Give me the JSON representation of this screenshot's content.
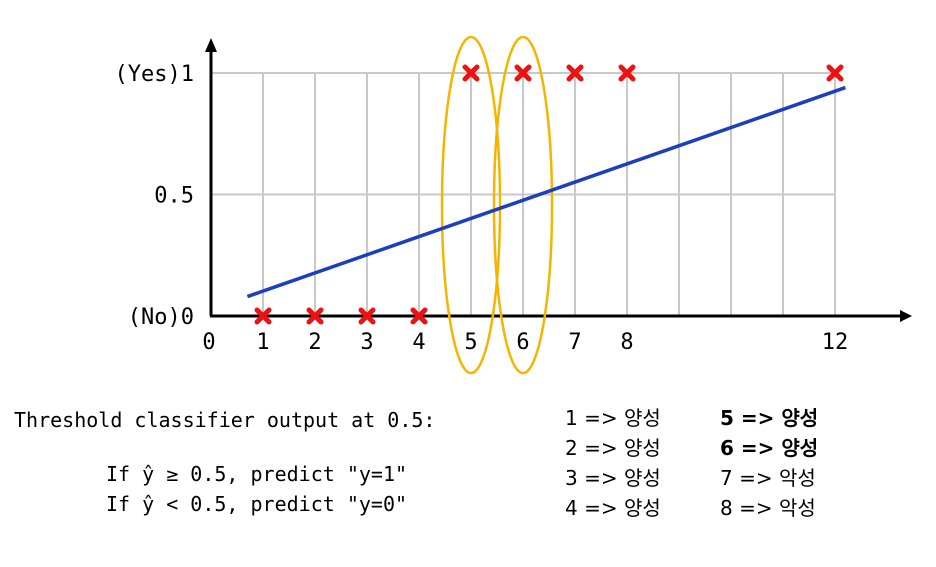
{
  "chart_data": {
    "type": "scatter",
    "x_ticks": [
      "0",
      "1",
      "2",
      "3",
      "4",
      "5",
      "6",
      "7",
      "8",
      "12"
    ],
    "y_ticks": [
      "(No)0",
      "0.5",
      "(Yes)1"
    ],
    "xlim": [
      0,
      13
    ],
    "ylim": [
      0,
      1
    ],
    "grid": true,
    "points": [
      {
        "x": 1,
        "y": 0
      },
      {
        "x": 2,
        "y": 0
      },
      {
        "x": 3,
        "y": 0
      },
      {
        "x": 4,
        "y": 0
      },
      {
        "x": 5,
        "y": 1
      },
      {
        "x": 6,
        "y": 1
      },
      {
        "x": 7,
        "y": 1
      },
      {
        "x": 8,
        "y": 1
      },
      {
        "x": 12,
        "y": 1
      }
    ],
    "fit_line": {
      "x": [
        0.7,
        12.2
      ],
      "y": [
        0.08,
        0.94
      ]
    },
    "highlighted_x": [
      5,
      6
    ],
    "colors": {
      "points": "#ee1111",
      "line": "#1b3fbf",
      "highlight": "#f4b400",
      "grid": "#c8c8c8"
    }
  },
  "notes": {
    "header": "Threshold classifier output at 0.5:",
    "rule_ge": "If ŷ ≥ 0.5, predict \"y=1\"",
    "rule_lt": "If ŷ < 0.5, predict \"y=0\""
  },
  "mapping": [
    {
      "text": "1 => 양성",
      "bold": false
    },
    {
      "text": "2 => 양성",
      "bold": false
    },
    {
      "text": "3 => 양성",
      "bold": false
    },
    {
      "text": "4 => 양성",
      "bold": false
    },
    {
      "text": "5 => 양성",
      "bold": true
    },
    {
      "text": "6 => 양성",
      "bold": true
    },
    {
      "text": "7 => 악성",
      "bold": false
    },
    {
      "text": "8 => 악성",
      "bold": false
    }
  ]
}
